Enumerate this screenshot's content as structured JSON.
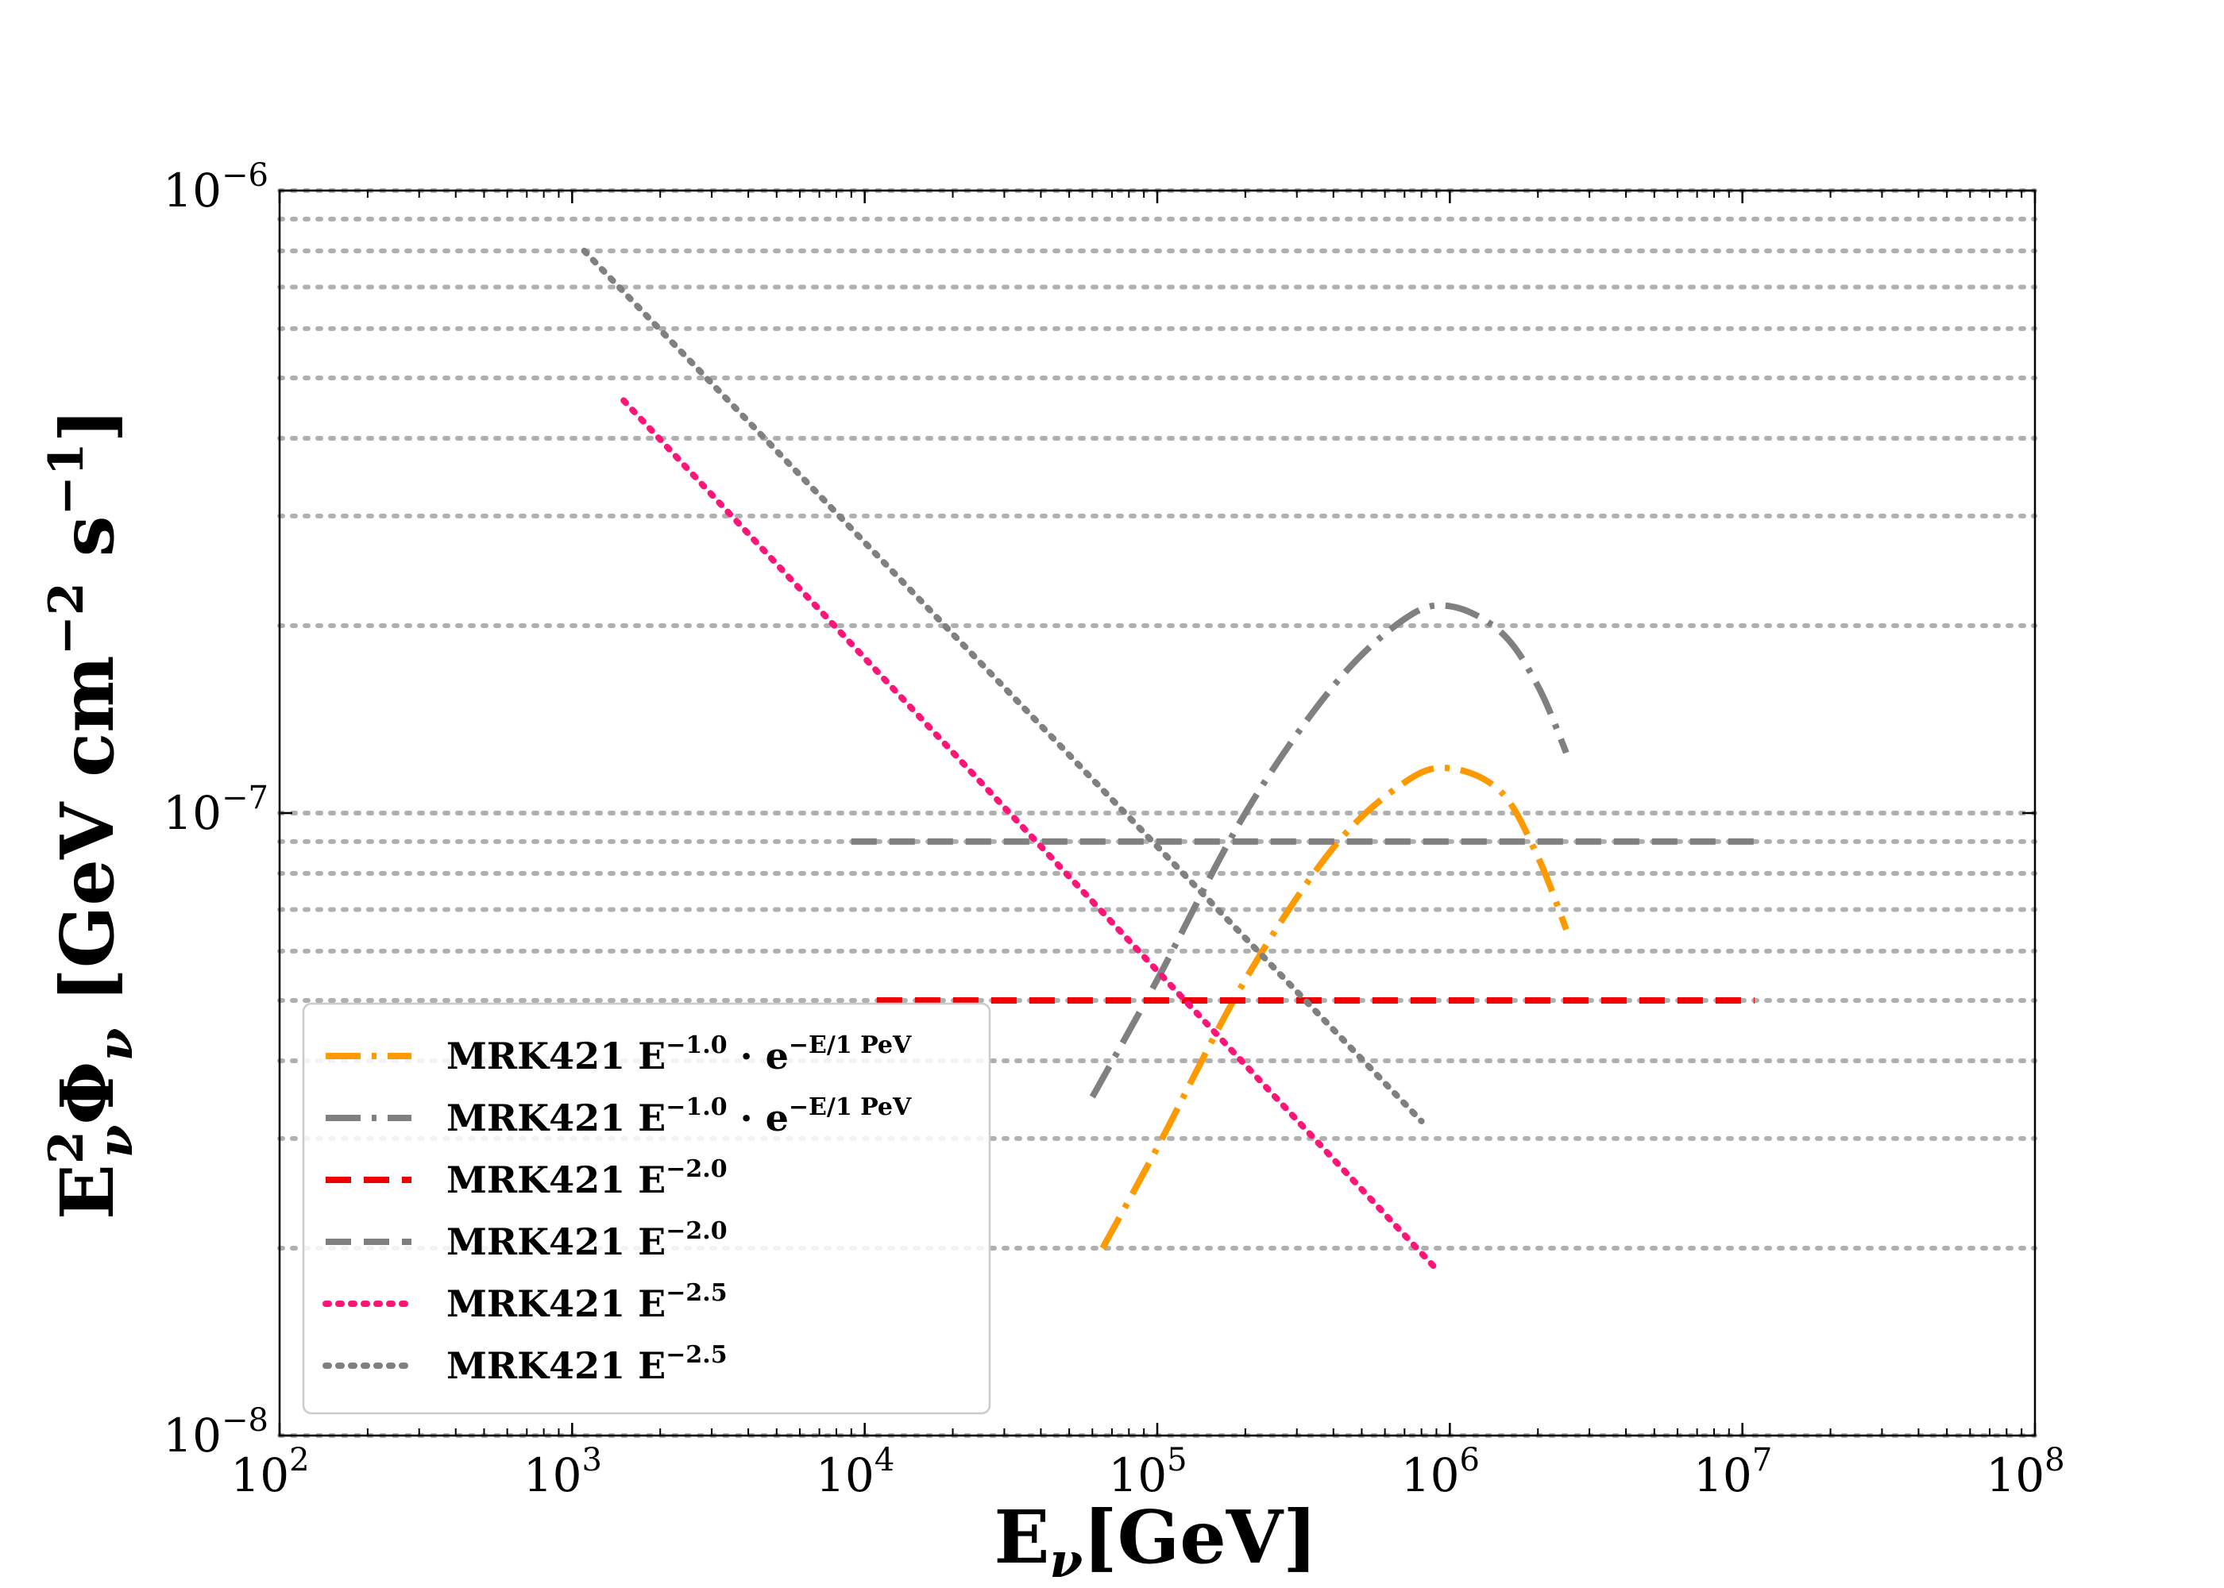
{
  "chart_data": {
    "type": "line",
    "title": "",
    "xlabel": "E_ν[GeV]",
    "ylabel": "E²_ν Φ_ν [GeV cm⁻² s⁻¹]",
    "xscale": "log",
    "yscale": "log",
    "xlim": [
      100,
      100000000
    ],
    "ylim": [
      1e-08,
      1e-06
    ],
    "grid": "y-major-and-minor-dotted",
    "legend_position": "lower-left",
    "x_ticks": [
      {
        "base": "10",
        "exp": "2",
        "value": 100
      },
      {
        "base": "10",
        "exp": "3",
        "value": 1000
      },
      {
        "base": "10",
        "exp": "4",
        "value": 10000
      },
      {
        "base": "10",
        "exp": "5",
        "value": 100000
      },
      {
        "base": "10",
        "exp": "6",
        "value": 1000000
      },
      {
        "base": "10",
        "exp": "7",
        "value": 10000000
      },
      {
        "base": "10",
        "exp": "8",
        "value": 100000000
      }
    ],
    "y_ticks": [
      {
        "base": "10",
        "exp": "−8",
        "value": 1e-08
      },
      {
        "base": "10",
        "exp": "−7",
        "value": 1e-07
      },
      {
        "base": "10",
        "exp": "−6",
        "value": 1e-06
      }
    ],
    "series": [
      {
        "name": "MRK421 E^{−1.0} · e^{−E/1 PeV}",
        "label_main": "MRK421 E",
        "label_exp": "−1.0",
        "label_tail": " · e",
        "label_tail_exp": "−E/1 PeV",
        "color": "#ff9900",
        "style": "dashdot",
        "kind": "cutoff",
        "x": [
          65000,
          100000,
          200000,
          400000,
          700000,
          1000000,
          1500000,
          2000000,
          2500000
        ],
        "y": [
          2e-08,
          2.9e-08,
          5.4e-08,
          8.8e-08,
          1.12e-07,
          1.18e-07,
          1.08e-07,
          8.5e-08,
          6.5e-08
        ]
      },
      {
        "name": "MRK421 E^{−1.0} · e^{−E/1 PeV}",
        "label_main": "MRK421 E",
        "label_exp": "−1.0",
        "label_tail": " · e",
        "label_tail_exp": "−E/1 PeV",
        "color": "#808080",
        "style": "dashdot",
        "kind": "cutoff",
        "x": [
          60000,
          100000,
          200000,
          400000,
          700000,
          1000000,
          1500000,
          2000000,
          2500000
        ],
        "y": [
          3.5e-08,
          5.4e-08,
          1e-07,
          1.6e-07,
          2.05e-07,
          2.15e-07,
          1.95e-07,
          1.6e-07,
          1.25e-07
        ]
      },
      {
        "name": "MRK421 E^{−2.0}",
        "label_main": "MRK421 E",
        "label_exp": "−2.0",
        "label_tail": "",
        "label_tail_exp": "",
        "color": "#ee0000",
        "style": "dashed",
        "kind": "flat",
        "x": [
          11000,
          11000000
        ],
        "y": [
          5e-08,
          5e-08
        ]
      },
      {
        "name": "MRK421 E^{−2.0}",
        "label_main": "MRK421 E",
        "label_exp": "−2.0",
        "label_tail": "",
        "label_tail_exp": "",
        "color": "#808080",
        "style": "dashed",
        "kind": "flat",
        "x": [
          9000,
          12000000
        ],
        "y": [
          9e-08,
          9e-08
        ]
      },
      {
        "name": "MRK421 E^{−2.5}",
        "label_main": "MRK421 E",
        "label_exp": "−2.5",
        "label_tail": "",
        "label_tail_exp": "",
        "color": "#ff1477",
        "style": "dotted",
        "kind": "power",
        "x": [
          1500,
          900000
        ],
        "y": [
          4.6e-07,
          1.85e-08
        ]
      },
      {
        "name": "MRK421 E^{−2.5}",
        "label_main": "MRK421 E",
        "label_exp": "−2.5",
        "label_tail": "",
        "label_tail_exp": "",
        "color": "#808080",
        "style": "dotted",
        "kind": "power",
        "x": [
          1100,
          800000
        ],
        "y": [
          8e-07,
          3.2e-08
        ]
      }
    ]
  }
}
